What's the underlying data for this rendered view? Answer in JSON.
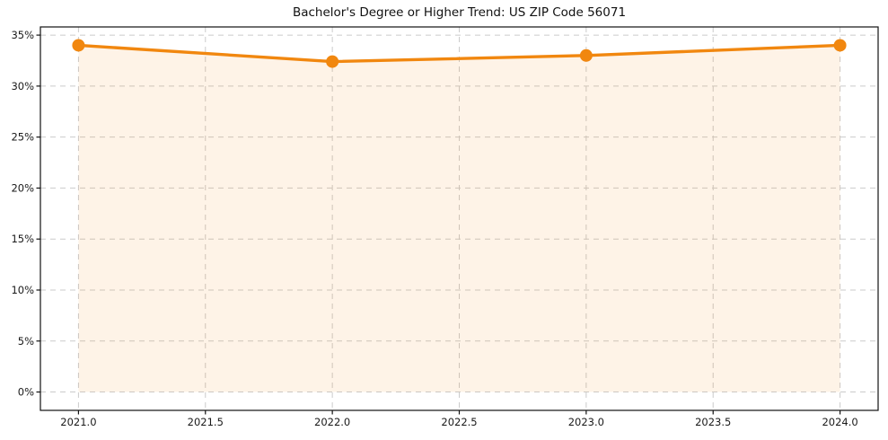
{
  "chart_data": {
    "type": "line",
    "title": "Bachelor's Degree or Higher Trend: US ZIP Code 56071",
    "x": [
      2021,
      2022,
      2023,
      2024
    ],
    "values": [
      34.0,
      32.4,
      33.0,
      34.0
    ],
    "xlabel": "",
    "ylabel": "",
    "xlim": [
      2020.85,
      2024.15
    ],
    "ylim": [
      -1.8,
      35.8
    ],
    "xtick_values": [
      2021.0,
      2021.5,
      2022.0,
      2022.5,
      2023.0,
      2023.5,
      2024.0
    ],
    "xtick_labels": [
      "2021.0",
      "2021.5",
      "2022.0",
      "2022.5",
      "2023.0",
      "2023.5",
      "2024.0"
    ],
    "ytick_values": [
      0,
      5,
      10,
      15,
      20,
      25,
      30,
      35
    ],
    "ytick_labels": [
      "0%",
      "5%",
      "10%",
      "15%",
      "20%",
      "25%",
      "30%",
      "35%"
    ],
    "grid": true,
    "grid_style": "dashed",
    "legend": false,
    "fill_to_zero": true,
    "colors": {
      "line": "#f1870f",
      "marker": "#f1870f",
      "fill": "rgba(241,135,15,0.10)",
      "grid": "#cbcbcb",
      "spine": "#111111",
      "text": "#1a1a1a"
    }
  }
}
